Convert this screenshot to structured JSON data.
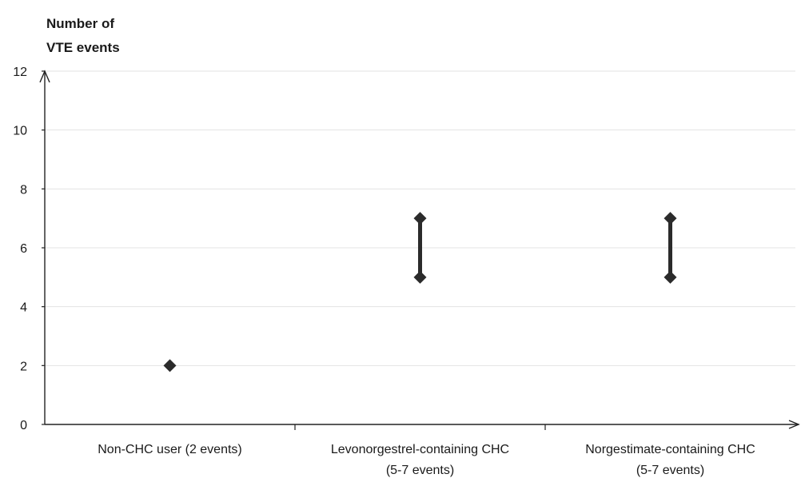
{
  "chart_data": {
    "type": "scatter",
    "ylabel_lines": [
      "Number of",
      "VTE events"
    ],
    "ylim": [
      0,
      12
    ],
    "yticks": [
      "0",
      "2",
      "4",
      "6",
      "8",
      "10",
      "12"
    ],
    "grid": true,
    "categories": [
      {
        "label_lines": [
          "Non-CHC user (2 events)"
        ],
        "low": 2,
        "high": 2
      },
      {
        "label_lines": [
          "Levonorgestrel-containing CHC",
          "(5-7 events)"
        ],
        "low": 5,
        "high": 7
      },
      {
        "label_lines": [
          "Norgestimate-containing CHC",
          "(5-7 events)"
        ],
        "low": 5,
        "high": 7
      }
    ],
    "colors": {
      "marker": "#2b2b2b",
      "grid": "#e3e3e3",
      "axis": "#222222"
    }
  }
}
